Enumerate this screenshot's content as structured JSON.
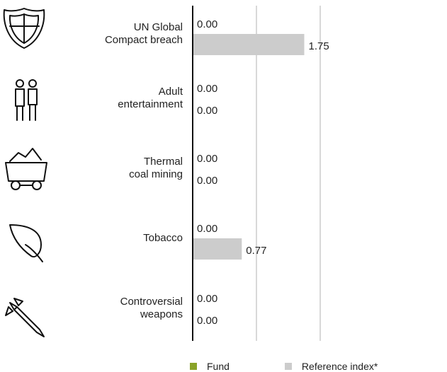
{
  "chart_data": {
    "type": "bar",
    "orientation": "horizontal",
    "categories": [
      [
        "UN Global",
        "Compact breach"
      ],
      [
        "Adult",
        "entertainment"
      ],
      [
        "Thermal",
        "coal mining"
      ],
      [
        "Tobacco"
      ],
      [
        "Controversial",
        "weapons"
      ]
    ],
    "category_icons": [
      "shield-icon",
      "people-icon",
      "coal-cart-icon",
      "leaf-icon",
      "missile-icon"
    ],
    "series": [
      {
        "name": "Fund",
        "color": "#8aa329",
        "values": [
          0.0,
          0.0,
          0.0,
          0.0,
          0.0
        ],
        "labels": [
          "0.00",
          "0.00",
          "0.00",
          "0.00",
          "0.00"
        ]
      },
      {
        "name": "Reference index*",
        "color": "#cccccc",
        "values": [
          1.75,
          0.0,
          0.0,
          0.77,
          0.0
        ],
        "labels": [
          "1.75",
          "0.00",
          "0.00",
          "0.77",
          "0.00"
        ]
      }
    ],
    "xlim": [
      0,
      2
    ],
    "legend_position": "bottom",
    "gridlines": [
      0,
      1,
      2
    ]
  }
}
